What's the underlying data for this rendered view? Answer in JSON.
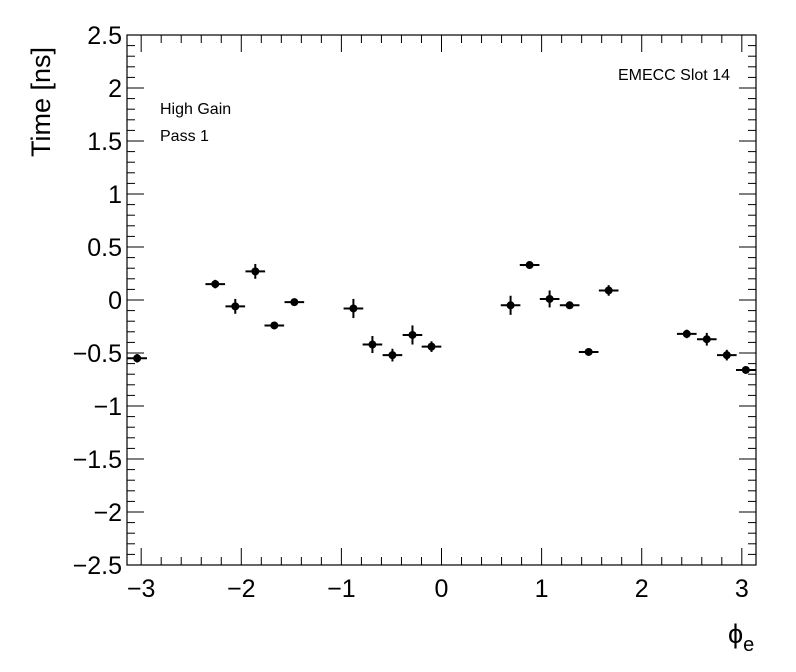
{
  "chart_data": {
    "type": "scatter",
    "title": "",
    "xlabel": "ϕ",
    "xlabel_subscript": "e",
    "ylabel": "Time [ns]",
    "xlim": [
      -3.1416,
      3.1416
    ],
    "ylim": [
      -2.5,
      2.5
    ],
    "grid": false,
    "x_ticks": [
      -3,
      -2,
      -1,
      0,
      1,
      2,
      3
    ],
    "x_tick_labels": [
      "−3",
      "−2",
      "−1",
      "0",
      "1",
      "2",
      "3"
    ],
    "y_ticks": [
      -2.5,
      -2,
      -1.5,
      -1,
      -0.5,
      0,
      0.5,
      1,
      1.5,
      2,
      2.5
    ],
    "y_tick_labels": [
      "−2.5",
      "−2",
      "−1.5",
      "−1",
      "−0.5",
      "0",
      "0.5",
      "1",
      "1.5",
      "2",
      "2.5"
    ],
    "annotations": [
      "High Gain",
      "Pass 1",
      "EMECC Slot 14"
    ],
    "series": [
      {
        "x": [
          -3.04,
          -2.26,
          -2.06,
          -1.86,
          -1.67,
          -1.47,
          -0.88,
          -0.69,
          -0.49,
          -0.29,
          -0.1,
          0.69,
          0.88,
          1.08,
          1.28,
          1.47,
          1.67,
          2.45,
          2.65,
          2.85,
          3.04
        ],
        "y": [
          -0.55,
          0.15,
          -0.06,
          0.27,
          -0.24,
          -0.02,
          -0.08,
          -0.42,
          -0.52,
          -0.33,
          -0.44,
          -0.05,
          0.33,
          0.01,
          -0.05,
          -0.49,
          0.09,
          -0.32,
          -0.37,
          -0.52,
          -0.66
        ],
        "xerr": [
          0.098,
          0.098,
          0.098,
          0.098,
          0.098,
          0.098,
          0.098,
          0.098,
          0.098,
          0.098,
          0.098,
          0.098,
          0.098,
          0.098,
          0.098,
          0.098,
          0.098,
          0.098,
          0.098,
          0.098,
          0.098
        ],
        "yerr": [
          0.04,
          0.04,
          0.07,
          0.07,
          0.02,
          0.03,
          0.09,
          0.08,
          0.06,
          0.09,
          0.05,
          0.09,
          0.03,
          0.08,
          0.03,
          0.02,
          0.05,
          0.04,
          0.06,
          0.05,
          0.03
        ]
      }
    ]
  }
}
